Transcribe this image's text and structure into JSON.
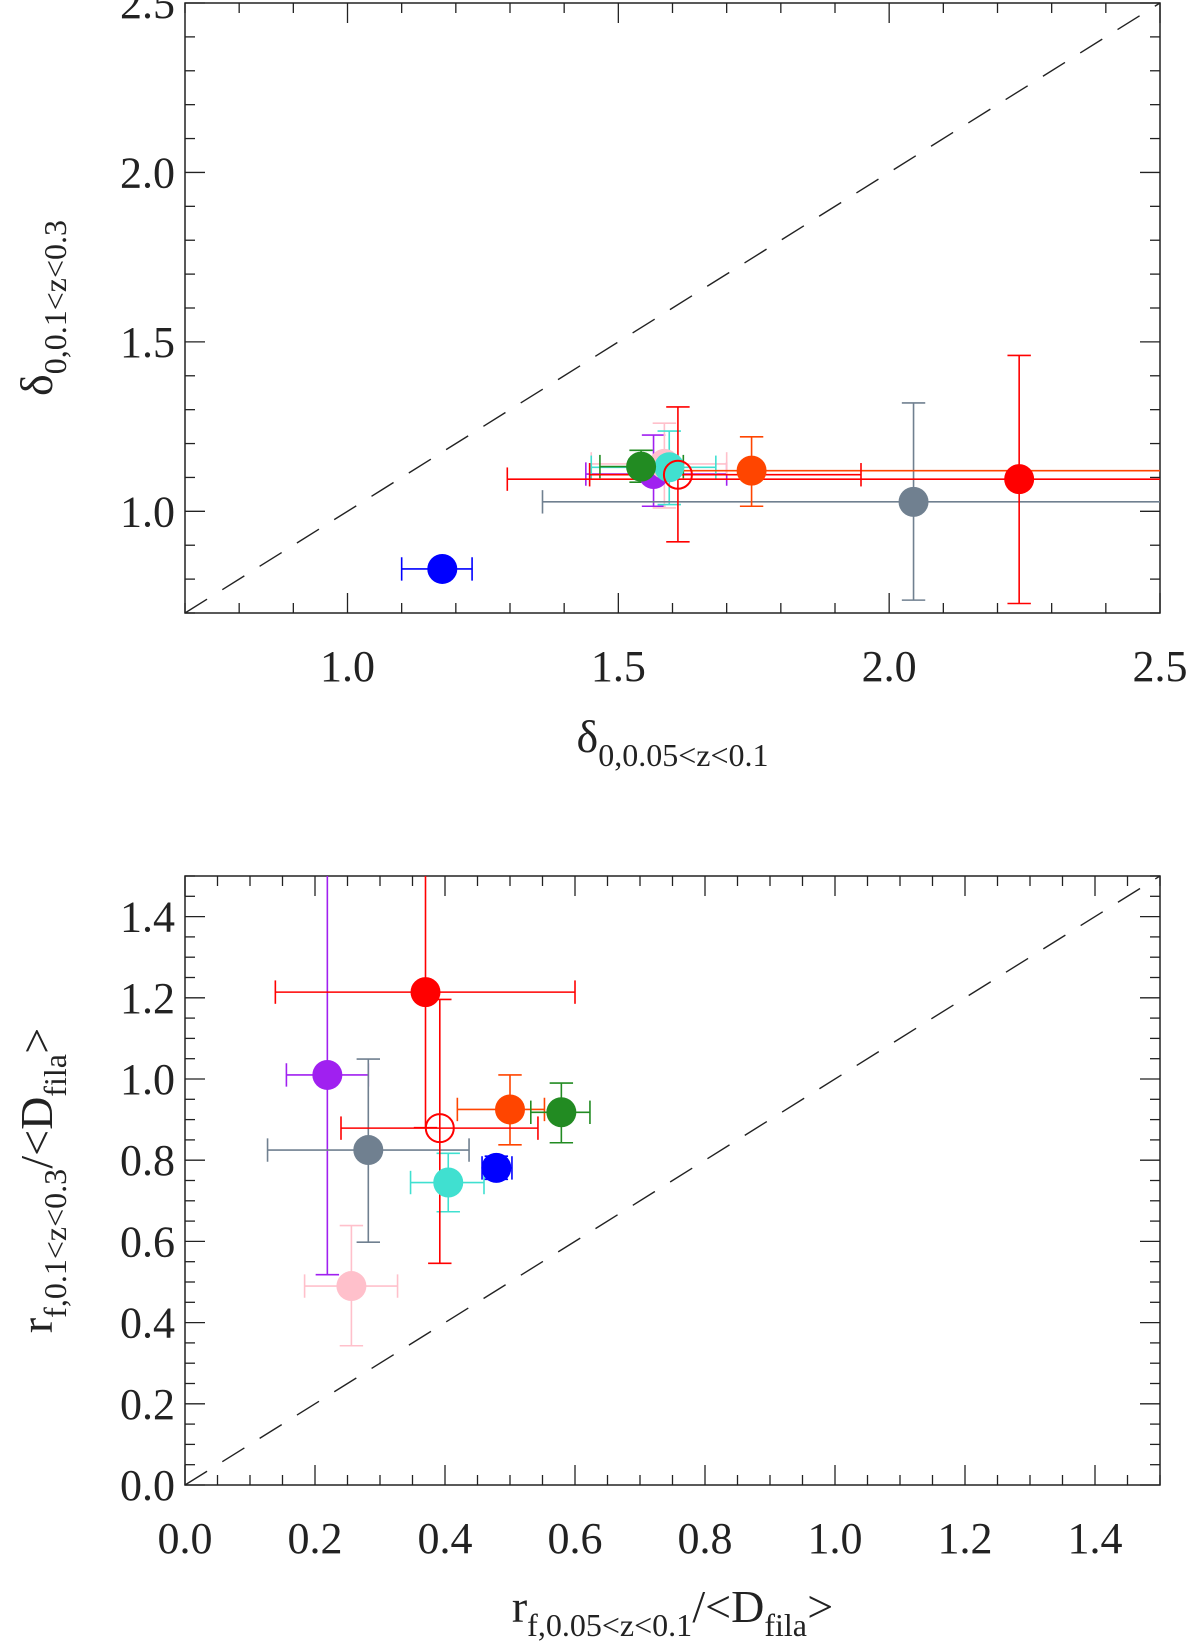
{
  "chart_data": [
    {
      "type": "scatter",
      "xlabel": [
        {
          "text": "δ",
          "sub": false
        },
        {
          "text": "0,0.05<z<0.1",
          "sub": true
        }
      ],
      "ylabel": [
        {
          "text": "δ",
          "sub": false
        },
        {
          "text": "0,0.1<z<0.3",
          "sub": true
        }
      ],
      "xlim": [
        0.7,
        2.5
      ],
      "ylim": [
        0.7,
        2.5
      ],
      "xticks": [
        "1.0",
        "1.5",
        "2.0",
        "2.5"
      ],
      "yticks": [
        "1.0",
        "1.5",
        "2.0",
        "2.5"
      ],
      "minor_step": 0.1,
      "reference_line": "y = x (dashed)",
      "grid": false,
      "points": [
        {
          "color": "#0000ff",
          "x": 1.175,
          "y": 0.83,
          "xerr": [
            1.1,
            1.23
          ],
          "yerr": [
            0.81,
            0.85
          ],
          "filled": true
        },
        {
          "color": "#a020f0",
          "x": 1.565,
          "y": 1.11,
          "xerr": [
            1.44,
            1.7
          ],
          "yerr": [
            1.015,
            1.225
          ],
          "filled": true
        },
        {
          "color": "#ffc0cb",
          "x": 1.585,
          "y": 1.14,
          "xerr": [
            1.45,
            1.7
          ],
          "yerr": [
            1.01,
            1.26
          ],
          "filled": true
        },
        {
          "color": "#40e0d0",
          "x": 1.594,
          "y": 1.13,
          "xerr": [
            1.45,
            1.68
          ],
          "yerr": [
            1.02,
            1.237
          ],
          "filled": true
        },
        {
          "color": "#228b22",
          "x": 1.542,
          "y": 1.132,
          "xerr": [
            1.466,
            1.62
          ],
          "yerr": [
            1.086,
            1.18
          ],
          "filled": true
        },
        {
          "color": "#708090",
          "x": 2.045,
          "y": 1.028,
          "xerr": [
            1.36,
            2.6
          ],
          "yerr": [
            0.738,
            1.32
          ],
          "filled": true
        },
        {
          "color": "#ff4500",
          "x": 1.746,
          "y": 1.12,
          "xerr": [
            1.55,
            2.6
          ],
          "yerr": [
            1.015,
            1.22
          ],
          "filled": true
        },
        {
          "color": "#ff0000",
          "x": 2.24,
          "y": 1.095,
          "xerr": [
            1.295,
            2.6
          ],
          "yerr": [
            0.728,
            1.46
          ],
          "filled": true
        },
        {
          "color": "#ff0000",
          "x": 1.61,
          "y": 1.108,
          "xerr": [
            1.447,
            1.948
          ],
          "yerr": [
            0.91,
            1.308
          ],
          "filled": false
        }
      ]
    },
    {
      "type": "scatter",
      "xlabel": [
        {
          "text": "r",
          "sub": false
        },
        {
          "text": "f,0.05<z<0.1",
          "sub": true
        },
        {
          "text": "/<D",
          "sub": false
        },
        {
          "text": "fila",
          "sub": true
        },
        {
          "text": ">",
          "sub": false
        }
      ],
      "ylabel": [
        {
          "text": "r",
          "sub": false
        },
        {
          "text": "f,0.1<z<0.3",
          "sub": true
        },
        {
          "text": "/<D",
          "sub": false
        },
        {
          "text": "fila",
          "sub": true
        },
        {
          "text": ">",
          "sub": false
        }
      ],
      "xlim": [
        0.0,
        1.5
      ],
      "ylim": [
        0.0,
        1.5
      ],
      "xticks": [
        "0.0",
        "0.2",
        "0.4",
        "0.6",
        "0.8",
        "1.0",
        "1.2",
        "1.4"
      ],
      "yticks": [
        "0.0",
        "0.2",
        "0.4",
        "0.6",
        "0.8",
        "1.0",
        "1.2",
        "1.4"
      ],
      "minor_step": 0.05,
      "reference_line": "y = x (dashed)",
      "grid": false,
      "points": [
        {
          "color": "#a020f0",
          "x": 0.219,
          "y": 1.01,
          "xerr": [
            0.156,
            0.282
          ],
          "yerr": [
            0.518,
            1.6
          ],
          "filled": true
        },
        {
          "color": "#708090",
          "x": 0.282,
          "y": 0.825,
          "xerr": [
            0.127,
            0.437
          ],
          "yerr": [
            0.598,
            1.049
          ],
          "filled": true
        },
        {
          "color": "#ffc0cb",
          "x": 0.256,
          "y": 0.49,
          "xerr": [
            0.184,
            0.327
          ],
          "yerr": [
            0.343,
            0.639
          ],
          "filled": true
        },
        {
          "color": "#40e0d0",
          "x": 0.405,
          "y": 0.745,
          "xerr": [
            0.347,
            0.46
          ],
          "yerr": [
            0.673,
            0.817
          ],
          "filled": true
        },
        {
          "color": "#0000ff",
          "x": 0.479,
          "y": 0.781,
          "xerr": [
            0.457,
            0.503
          ],
          "yerr": [
            0.753,
            0.81
          ],
          "filled": true
        },
        {
          "color": "#ff4500",
          "x": 0.5,
          "y": 0.925,
          "xerr": [
            0.419,
            0.553
          ],
          "yerr": [
            0.838,
            1.01
          ],
          "filled": true
        },
        {
          "color": "#228b22",
          "x": 0.579,
          "y": 0.918,
          "xerr": [
            0.532,
            0.623
          ],
          "yerr": [
            0.843,
            0.99
          ],
          "filled": true
        },
        {
          "color": "#ff0000",
          "x": 0.37,
          "y": 1.214,
          "xerr": [
            0.139,
            0.6
          ],
          "yerr": [
            0.88,
            1.6
          ],
          "filled": true
        },
        {
          "color": "#ff0000",
          "x": 0.392,
          "y": 0.879,
          "xerr": [
            0.24,
            0.543
          ],
          "yerr": [
            0.546,
            1.196
          ],
          "filled": false
        }
      ]
    }
  ]
}
